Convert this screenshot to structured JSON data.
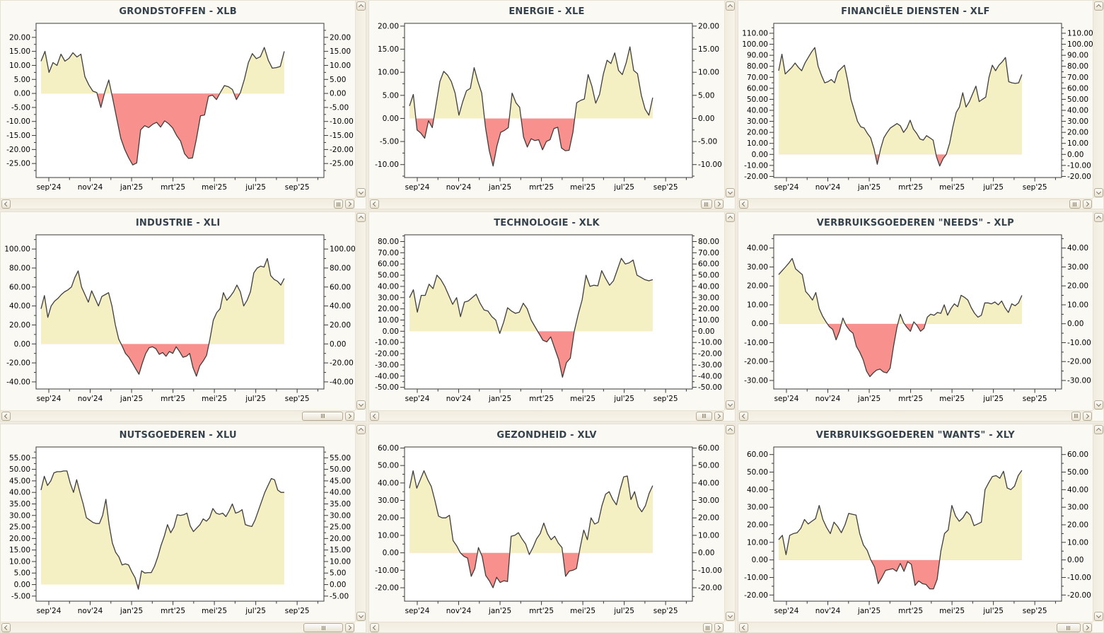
{
  "palette": {
    "positive_fill": "#f5efc4",
    "negative_fill": "#f8908e",
    "line": "#3f3e3c",
    "plot_border": "#3a3a3a",
    "title_color": "#35424c",
    "label_color": "#000000",
    "panel_bg": "#fbf9f4"
  },
  "x_axis": {
    "labels": [
      "sep'24",
      "nov'24",
      "jan'25",
      "mrt'25",
      "mei'25",
      "jul'25",
      "sep'25"
    ],
    "months_total": 13
  },
  "chart_data": {
    "note": "see charts[] — type area, weekly % values sep'24..sep'25"
  },
  "charts": [
    {
      "id": "XLB",
      "title": "GRONDSTOFFEN - XLB",
      "type": "area",
      "y_axis": {
        "label_min": -25,
        "label_max": 20,
        "step": 5,
        "axis_min": -30,
        "axis_max": 25
      },
      "values": [
        11.5,
        15,
        7.5,
        11,
        10,
        14,
        11.5,
        12.5,
        14.5,
        13,
        14,
        6,
        3,
        0.8,
        0.3,
        -5,
        0.5,
        4.8,
        -2,
        -9,
        -16,
        -20,
        -23,
        -25.5,
        -24.8,
        -13,
        -11.5,
        -12.2,
        -11,
        -10.3,
        -12,
        -9.8,
        -10.8,
        -12.3,
        -15,
        -17,
        -21.5,
        -23.2,
        -23,
        -16,
        -8,
        -7.7,
        -1,
        -0.6,
        -2.2,
        0.4,
        2.8,
        2.4,
        1.4,
        -2.2,
        0.3,
        5,
        11,
        14.2,
        12.4,
        13.1,
        16.4,
        11.8,
        9,
        9.2,
        9.6,
        15
      ],
      "scrollbar": {
        "thumb_width": 13
      }
    },
    {
      "id": "XLE",
      "title": "ENERGIE - XLE",
      "type": "area",
      "y_axis": {
        "label_min": -10,
        "label_max": 20,
        "step": 5,
        "axis_min": -12.8,
        "axis_max": 20.6
      },
      "values": [
        2.7,
        5.2,
        -2.5,
        -3.2,
        -4.3,
        -0.5,
        -2,
        3,
        8,
        10.2,
        9.4,
        8,
        5.5,
        0.7,
        3.6,
        6,
        6.5,
        11,
        8,
        5.5,
        -2,
        -7,
        -10.3,
        -6,
        -3,
        -2.6,
        -2,
        5.5,
        3.4,
        2.4,
        -4,
        -6.2,
        -4.4,
        -4.8,
        -4.6,
        -6.8,
        -5,
        -4.6,
        -2.2,
        -1.9,
        -6.4,
        -7,
        -6.9,
        -3,
        3.4,
        3.9,
        4.2,
        9.5,
        7,
        3.3,
        5.2,
        9.6,
        12.6,
        11.9,
        14.2,
        10.4,
        9.5,
        12,
        15.5,
        10.4,
        9.7,
        5,
        2,
        0.7,
        4.5
      ],
      "scrollbar": {
        "thumb_width": 16
      }
    },
    {
      "id": "XLF",
      "title": "FINANCIËLE DIENSTEN - XLF",
      "type": "area",
      "y_axis": {
        "label_min": -20,
        "label_max": 110,
        "step": 10,
        "axis_min": -21,
        "axis_max": 119
      },
      "values": [
        76,
        91,
        73,
        76,
        79,
        83,
        79,
        76,
        83,
        88,
        93,
        97,
        80,
        72,
        65,
        66,
        68,
        65,
        75,
        78,
        81,
        67,
        50,
        40,
        30,
        25,
        24,
        19,
        15,
        5,
        -9,
        5,
        15,
        20,
        24,
        26,
        28,
        26,
        20,
        24,
        31,
        23,
        19,
        14,
        13,
        17,
        15,
        13,
        -2,
        -10.5,
        -4,
        0,
        10,
        25,
        38,
        43,
        56,
        43,
        48,
        55,
        62,
        48,
        50,
        52,
        70,
        81,
        76,
        81,
        84,
        88,
        66,
        65,
        64.5,
        65,
        72.5
      ],
      "scrollbar": {
        "thumb_width": 16
      }
    },
    {
      "id": "XLI",
      "title": "INDUSTRIE - XLI",
      "type": "area",
      "y_axis": {
        "label_min": -40,
        "label_max": 100,
        "step": 20,
        "axis_min": -47.5,
        "axis_max": 115
      },
      "values": [
        37,
        51,
        28,
        40,
        45,
        48,
        52,
        55,
        57,
        60,
        70,
        77,
        60,
        52,
        44,
        56,
        48,
        40,
        50,
        52,
        54,
        40,
        20,
        5,
        -2,
        -10,
        -14,
        -20,
        -26,
        -32,
        -20,
        -10,
        -4,
        -3,
        -5,
        -11,
        -9,
        -13,
        -8,
        -10,
        -3,
        -8,
        -14,
        -13,
        -10,
        -25,
        -34,
        -23,
        -18,
        -12,
        5,
        25,
        33,
        37,
        54,
        46,
        50,
        55,
        62,
        55,
        40,
        46,
        55,
        75,
        80,
        82,
        81,
        90,
        72,
        68,
        66,
        62,
        69
      ],
      "scrollbar": {
        "thumb_width": 58
      }
    },
    {
      "id": "XLK",
      "title": "TECHNOLOGIE - XLK",
      "type": "area",
      "y_axis": {
        "label_min": -50,
        "label_max": 80,
        "step": 10,
        "axis_min": -51.5,
        "axis_max": 86
      },
      "values": [
        30,
        37,
        17,
        32,
        32,
        42,
        38,
        50,
        46,
        40,
        32,
        24,
        30,
        13,
        26,
        27,
        30,
        33,
        25,
        19,
        18,
        13,
        10,
        -2,
        8,
        21,
        18,
        16,
        17,
        25,
        20,
        10,
        4,
        -2,
        -8,
        -9.5,
        -5,
        -15,
        -25,
        -41,
        -28,
        -24,
        0,
        15,
        28,
        50,
        40,
        41,
        40.5,
        54,
        47,
        41,
        45,
        55,
        65,
        60,
        61,
        63.5,
        50,
        48,
        46,
        45,
        46
      ],
      "scrollbar": {
        "thumb_width": 23
      }
    },
    {
      "id": "XLP",
      "title": "VERBRUIKSGOEDEREN \"NEEDS\" - XLP",
      "type": "area",
      "y_axis": {
        "label_min": -30,
        "label_max": 40,
        "step": 10,
        "axis_min": -34.5,
        "axis_max": 47
      },
      "values": [
        26,
        28,
        30,
        32,
        34.5,
        29,
        27.5,
        26,
        17,
        15,
        12.5,
        16.5,
        8,
        4,
        1,
        -1.5,
        -3,
        -8.5,
        -4,
        3,
        -1,
        -3.5,
        -5,
        -12,
        -15,
        -19,
        -25,
        -28,
        -26,
        -24.5,
        -24,
        -25.5,
        -26,
        -23.5,
        -12,
        -2,
        5,
        0.5,
        -2,
        -4,
        1,
        -1,
        -4,
        -2.5,
        3.5,
        5,
        4.5,
        6,
        5.5,
        10,
        4.5,
        8,
        10.5,
        9,
        15,
        14,
        12.5,
        8.5,
        5.5,
        3.5,
        4.5,
        11,
        11,
        10.5,
        11.5,
        10,
        12,
        8.5,
        6,
        10.5,
        9.5,
        11,
        15
      ],
      "scrollbar": {
        "thumb_width": 13
      }
    },
    {
      "id": "XLU",
      "title": "NUTSGOEDEREN - XLU",
      "type": "area",
      "y_axis": {
        "label_min": -5,
        "label_max": 55,
        "step": 5,
        "axis_min": -7.2,
        "axis_max": 59.7
      },
      "values": [
        41,
        47,
        43,
        45,
        48.5,
        49,
        49,
        49.3,
        49.3,
        44,
        40,
        45.5,
        40,
        35,
        29,
        28,
        27,
        26.5,
        26.5,
        30,
        37,
        26,
        18,
        14,
        12,
        8.5,
        9,
        8.5,
        5.5,
        3,
        -2,
        6,
        5,
        5.2,
        5.2,
        8,
        12,
        17,
        21,
        26,
        22.5,
        25,
        30.3,
        30,
        30.3,
        31,
        25.5,
        23,
        24.5,
        26,
        28.5,
        27.5,
        29,
        33,
        31,
        30.5,
        31,
        29.5,
        32,
        35,
        31,
        31.5,
        32.5,
        26,
        25.5,
        25.2,
        28,
        32,
        36,
        40,
        43,
        46,
        45.5,
        41,
        40,
        40
      ],
      "scrollbar": {
        "thumb_width": 56
      }
    },
    {
      "id": "XLV",
      "title": "GEZONDHEID - XLV",
      "type": "area",
      "y_axis": {
        "label_min": -20,
        "label_max": 60,
        "step": 10,
        "axis_min": -27.7,
        "axis_max": 60.6
      },
      "values": [
        37,
        47,
        37,
        42,
        47,
        42,
        38,
        30,
        21,
        20,
        20,
        21.5,
        7,
        4,
        0,
        -2,
        -3,
        -13.5,
        -9,
        3,
        -2,
        -13,
        -16,
        -20,
        -14,
        -17,
        -16,
        -16.5,
        9.5,
        10,
        11.5,
        8,
        5,
        -1,
        3,
        8,
        11,
        17,
        11,
        7.5,
        9.5,
        5.5,
        3,
        -13.5,
        -10.5,
        -10,
        -9,
        3,
        13,
        7.5,
        20,
        16.5,
        17.5,
        27,
        33.5,
        35,
        30.5,
        27.5,
        36,
        43.5,
        44,
        30.5,
        35,
        26.5,
        23.5,
        27,
        34,
        38.5
      ],
      "scrollbar": {
        "thumb_width": 13
      }
    },
    {
      "id": "XLY",
      "title": "VERBRUIKSGOEDEREN \"WANTS\" - XLY",
      "type": "area",
      "y_axis": {
        "label_min": -20,
        "label_max": 60,
        "step": 10,
        "axis_min": -23.5,
        "axis_max": 64.3
      },
      "values": [
        11.5,
        14,
        3,
        14,
        15,
        15.5,
        18,
        23,
        20.5,
        22,
        23.5,
        31,
        23,
        18.5,
        15,
        21.5,
        19,
        15.5,
        20,
        26.5,
        26,
        25.5,
        15,
        8.5,
        5.5,
        0,
        -4,
        -13.5,
        -10,
        -6,
        -5.5,
        -5,
        -6.5,
        -2,
        -6.5,
        -1,
        -2.5,
        -14.5,
        -12,
        -13.5,
        -14,
        -16.5,
        -16.5,
        -11,
        5,
        15,
        17,
        31,
        25,
        22,
        24,
        27.5,
        25.5,
        19.5,
        20.5,
        21.5,
        40,
        44,
        47.5,
        48,
        46.5,
        50.5,
        41,
        40,
        42,
        48,
        51
      ],
      "scrollbar": {
        "thumb_width": 34
      }
    }
  ]
}
